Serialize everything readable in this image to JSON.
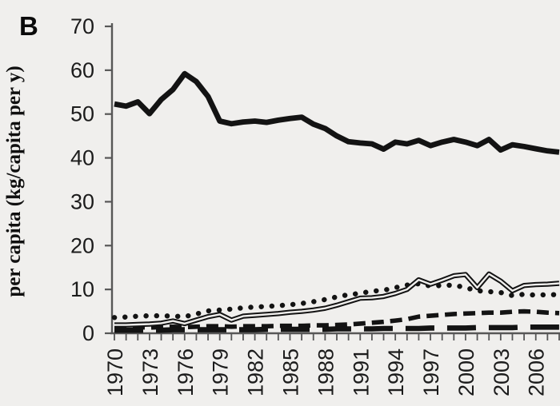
{
  "page": {
    "background": "#f0efed"
  },
  "chart_data": {
    "type": "line",
    "panel_label": "B",
    "title": "",
    "xlabel": "",
    "ylabel": "per capita (kg/capita per y)",
    "xlim": [
      1970,
      2008
    ],
    "ylim": [
      0,
      70
    ],
    "y_ticks": [
      0,
      10,
      20,
      30,
      40,
      50,
      60,
      70
    ],
    "x_tick_labels": [
      1970,
      1973,
      1976,
      1979,
      1982,
      1985,
      1988,
      1991,
      1994,
      1997,
      2000,
      2003,
      2006
    ],
    "x_minor_tick_interval": 1,
    "grid": false,
    "legend": "none",
    "axis_color": "#575757",
    "line_color": "#131313",
    "text_color": "#1c1c1c",
    "x": [
      1970,
      1971,
      1972,
      1973,
      1974,
      1975,
      1976,
      1977,
      1978,
      1979,
      1980,
      1981,
      1982,
      1983,
      1984,
      1985,
      1986,
      1987,
      1988,
      1989,
      1990,
      1991,
      1992,
      1993,
      1994,
      1995,
      1996,
      1997,
      1998,
      1999,
      2000,
      2001,
      2002,
      2003,
      2004,
      2005,
      2006,
      2007,
      2008
    ],
    "series": [
      {
        "name": "dotted",
        "style": "dotted",
        "values": [
          3.6,
          3.7,
          3.9,
          4.0,
          4.0,
          3.9,
          3.8,
          4.4,
          5.1,
          5.3,
          5.5,
          5.8,
          6.0,
          6.1,
          6.3,
          6.5,
          6.8,
          7.2,
          7.7,
          8.3,
          8.8,
          9.1,
          9.6,
          9.8,
          10.4,
          11.0,
          11.3,
          10.8,
          10.9,
          11.0,
          10.4,
          9.7,
          9.5,
          9.3,
          8.6,
          8.9,
          8.7,
          8.8,
          8.8
        ]
      },
      {
        "name": "dashed",
        "style": "dashed",
        "values": [
          1.4,
          1.4,
          1.4,
          1.3,
          1.4,
          1.5,
          1.4,
          1.5,
          1.6,
          1.6,
          1.5,
          1.6,
          1.6,
          1.6,
          1.7,
          1.7,
          1.7,
          1.8,
          1.8,
          1.9,
          2.0,
          2.2,
          2.4,
          2.6,
          2.9,
          3.2,
          3.8,
          4.0,
          4.2,
          4.4,
          4.5,
          4.6,
          4.7,
          4.7,
          4.9,
          5.0,
          4.9,
          4.7,
          4.6
        ]
      },
      {
        "name": "long-dash",
        "style": "long-dash",
        "values": [
          0.7,
          0.7,
          0.7,
          0.7,
          0.7,
          0.8,
          0.8,
          0.8,
          0.8,
          0.8,
          0.8,
          0.8,
          0.8,
          0.9,
          0.9,
          0.9,
          0.9,
          0.9,
          0.9,
          1.0,
          1.0,
          1.0,
          1.0,
          1.1,
          1.1,
          1.1,
          1.1,
          1.2,
          1.2,
          1.2,
          1.2,
          1.3,
          1.3,
          1.3,
          1.3,
          1.4,
          1.4,
          1.4,
          1.4
        ]
      },
      {
        "name": "double-line",
        "style": "double",
        "values": [
          1.9,
          1.9,
          2.0,
          2.1,
          2.3,
          2.8,
          2.2,
          3.0,
          3.8,
          4.3,
          3.0,
          3.9,
          4.1,
          4.3,
          4.5,
          4.8,
          5.0,
          5.3,
          5.7,
          6.4,
          7.2,
          8.0,
          8.1,
          8.4,
          9.1,
          10.0,
          12.2,
          11.2,
          12.1,
          13.1,
          13.4,
          10.4,
          13.5,
          11.9,
          9.7,
          10.9,
          11.1,
          11.2,
          11.4
        ]
      },
      {
        "name": "solid-thick",
        "style": "solid",
        "values": [
          52.3,
          51.8,
          52.8,
          50.1,
          53.3,
          55.6,
          59.2,
          57.4,
          54.0,
          48.4,
          47.8,
          48.2,
          48.4,
          48.1,
          48.6,
          49.0,
          49.3,
          47.7,
          46.7,
          45.0,
          43.7,
          43.4,
          43.2,
          42.0,
          43.6,
          43.2,
          44.0,
          42.8,
          43.6,
          44.2,
          43.6,
          42.8,
          44.2,
          41.8,
          43.0,
          42.6,
          42.1,
          41.6,
          41.3
        ]
      }
    ]
  }
}
